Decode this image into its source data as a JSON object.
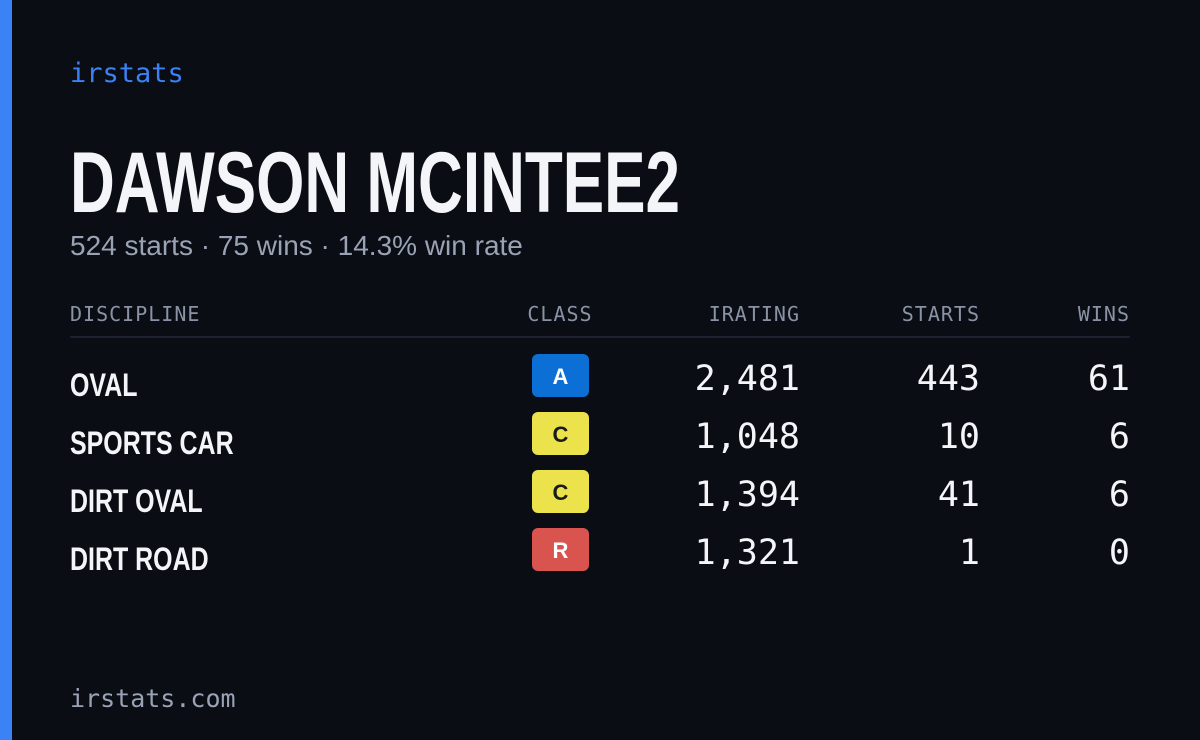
{
  "brand": "irstats",
  "header": {
    "name": "DAWSON MCINTEE2",
    "summary": "524 starts · 75 wins · 14.3% win rate"
  },
  "table": {
    "columns": [
      "DISCIPLINE",
      "CLASS",
      "IRATING",
      "STARTS",
      "WINS"
    ],
    "rows": [
      {
        "discipline": "OVAL",
        "class": "A",
        "class_color": "#0b6fd6",
        "class_text_color": "#ffffff",
        "irating": "2,481",
        "starts": "443",
        "wins": "61"
      },
      {
        "discipline": "SPORTS CAR",
        "class": "C",
        "class_color": "#ebe24c",
        "class_text_color": "#1a1a1a",
        "irating": "1,048",
        "starts": "10",
        "wins": "6"
      },
      {
        "discipline": "DIRT OVAL",
        "class": "C",
        "class_color": "#ebe24c",
        "class_text_color": "#1a1a1a",
        "irating": "1,394",
        "starts": "41",
        "wins": "6"
      },
      {
        "discipline": "DIRT ROAD",
        "class": "R",
        "class_color": "#d9534f",
        "class_text_color": "#ffffff",
        "irating": "1,321",
        "starts": "1",
        "wins": "0"
      }
    ]
  },
  "footer": "irstats.com"
}
